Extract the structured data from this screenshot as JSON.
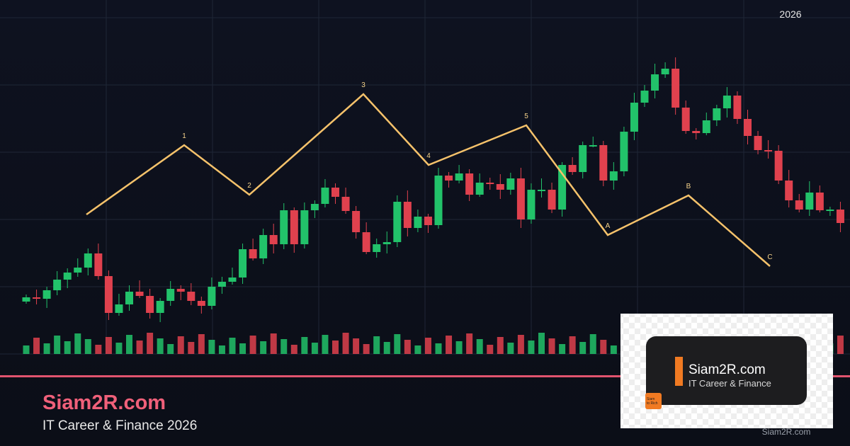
{
  "year": "2026",
  "waves": [
    "1",
    "2",
    "3",
    "4",
    "5",
    "A",
    "B",
    "C"
  ],
  "brand": {
    "name": "Siam2R.com",
    "tagline": "IT Career & Finance 2026"
  },
  "card": {
    "name": "Siam2R.com",
    "tagline": "IT Career & Finance",
    "icon": [
      "Siam",
      "to Rich"
    ]
  },
  "watermark": "Siam2R.com"
}
